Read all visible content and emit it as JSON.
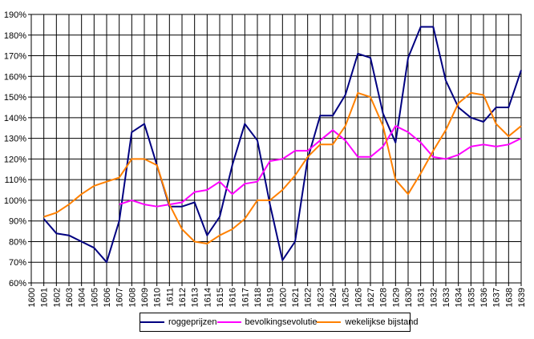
{
  "chart_data": {
    "type": "line",
    "title": "",
    "xlabel": "",
    "ylabel": "",
    "x": [
      "1600",
      "1601",
      "1602",
      "1603",
      "1604",
      "1605",
      "1606",
      "1607",
      "1608",
      "1609",
      "1610",
      "1611",
      "1612",
      "1613",
      "1614",
      "1615",
      "1616",
      "1617",
      "1618",
      "1619",
      "1620",
      "1621",
      "1622",
      "1623",
      "1624",
      "1625",
      "1626",
      "1627",
      "1628",
      "1629",
      "1630",
      "1631",
      "1632",
      "1633",
      "1634",
      "1635",
      "1636",
      "1637",
      "1638",
      "1639"
    ],
    "ylim": [
      60,
      190
    ],
    "yticks": [
      60,
      70,
      80,
      90,
      100,
      110,
      120,
      130,
      140,
      150,
      160,
      170,
      180,
      190
    ],
    "ytick_labels": [
      "60%",
      "70%",
      "80%",
      "90%",
      "100%",
      "110%",
      "120%",
      "130%",
      "140%",
      "150%",
      "160%",
      "170%",
      "180%",
      "190%"
    ],
    "grid": true,
    "legend_position": "bottom",
    "series": [
      {
        "name": "roggeprijzen",
        "color": "#000080",
        "values": [
          null,
          91,
          84,
          83,
          80,
          77,
          70,
          90,
          133,
          137,
          117,
          97,
          97,
          99,
          83,
          92,
          117,
          137,
          129,
          98,
          71,
          80,
          120,
          141,
          141,
          151,
          171,
          169,
          142,
          128,
          169,
          184,
          184,
          158,
          145,
          140,
          138,
          145,
          145,
          163
        ]
      },
      {
        "name": "bevolkingsevolutie",
        "color": "#ff00ff",
        "values": [
          null,
          null,
          null,
          null,
          null,
          null,
          null,
          98,
          100,
          98,
          97,
          98,
          99,
          104,
          105,
          109,
          103,
          108,
          109,
          119,
          120,
          124,
          124,
          129,
          134,
          129,
          121,
          121,
          126,
          136,
          133,
          128,
          121,
          120,
          122,
          126,
          127,
          126,
          127,
          130
        ]
      },
      {
        "name": "wekelijkse bijstand",
        "color": "#ff8000",
        "values": [
          null,
          92,
          94,
          98,
          103,
          107,
          109,
          111,
          120,
          120,
          117,
          98,
          86,
          80,
          79,
          83,
          86,
          91,
          100,
          100,
          105,
          112,
          121,
          127,
          127,
          136,
          152,
          150,
          136,
          110,
          103,
          113,
          124,
          134,
          147,
          152,
          151,
          137,
          131,
          136
        ]
      }
    ]
  }
}
